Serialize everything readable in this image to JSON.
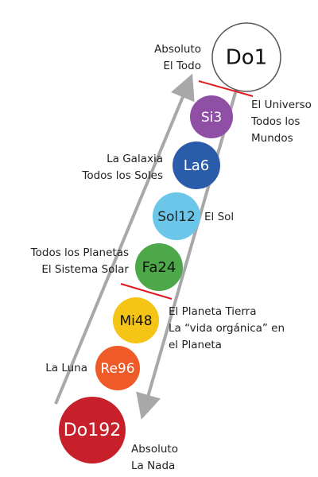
{
  "nodes": [
    {
      "label": "Do1",
      "notes": [
        "Absoluto",
        "El Todo"
      ]
    },
    {
      "label": "Si3",
      "notes": [
        "El Universo",
        "Todos los",
        "Mundos"
      ]
    },
    {
      "label": "La6",
      "notes": [
        "La Galaxia",
        "Todos los Soles"
      ]
    },
    {
      "label": "Sol12",
      "notes": [
        "El Sol"
      ]
    },
    {
      "label": "Fa24",
      "notes": [
        "Todos los Planetas",
        "El Sistema Solar"
      ]
    },
    {
      "label": "Mi48",
      "notes": [
        "El Planeta Tierra",
        "La “vida orgánica” en",
        "el Planeta"
      ]
    },
    {
      "label": "Re96",
      "notes": [
        "La Luna"
      ]
    },
    {
      "label": "Do192",
      "notes": [
        "Absoluto",
        "La Nada"
      ]
    }
  ]
}
